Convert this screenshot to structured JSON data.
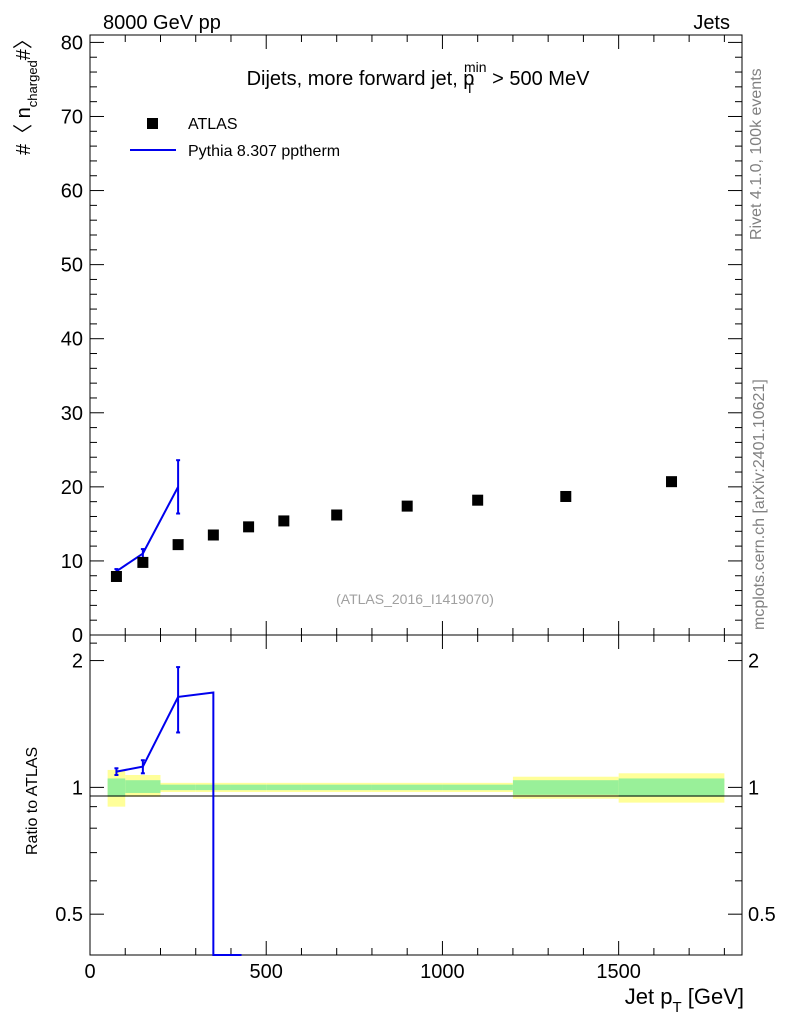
{
  "header": {
    "left": "8000 GeV pp",
    "right": "Jets"
  },
  "side_text": {
    "rivet": "Rivet 4.1.0,  100k events",
    "mcplots": "mcplots.cern.ch [arXiv:2401.10621]"
  },
  "colors": {
    "data": "#000000",
    "mc": "#0000ee",
    "band_inner": "#99f099",
    "band_outer": "#ffff99"
  },
  "chart_data": [
    {
      "type": "scatter",
      "title": "Dijets, more forward jet, p",
      "title_sup": "min",
      "title_sub": "T",
      "title_tail": " > 500 MeV",
      "ylabel_pre": "#〈 n",
      "ylabel_sub": "charged",
      "ylabel_post": "#〉",
      "xlim": [
        0,
        1850
      ],
      "ylim": [
        0,
        81
      ],
      "yticks": [
        0,
        10,
        20,
        30,
        40,
        50,
        60,
        70,
        80
      ],
      "ytick_labels": [
        "0",
        "10",
        "20",
        "30",
        "40",
        "50",
        "60",
        "70",
        "80"
      ],
      "watermark": "(ATLAS_2016_I1419070)",
      "legend": [
        {
          "label": "ATLAS",
          "marker": "square"
        },
        {
          "label": "Pythia 8.307 pptherm",
          "marker": "line"
        }
      ],
      "series": [
        {
          "name": "ATLAS",
          "x": [
            75,
            150,
            250,
            350,
            450,
            550,
            700,
            900,
            1100,
            1350,
            1650
          ],
          "y": [
            7.9,
            9.8,
            12.2,
            13.5,
            14.6,
            15.4,
            16.2,
            17.4,
            18.2,
            18.7,
            20.7
          ]
        },
        {
          "name": "Pythia 8.307 pptherm",
          "x": [
            75,
            150,
            250
          ],
          "y": [
            8.6,
            11.0,
            20.0
          ],
          "err": [
            0.3,
            0.6,
            3.6
          ]
        }
      ]
    },
    {
      "type": "line",
      "ylabel": "Ratio to ATLAS",
      "xlabel_pre": "Jet p",
      "xlabel_sub": "T",
      "xlabel_post": " [GeV]",
      "xlim": [
        0,
        1850
      ],
      "ylim": [
        0.4,
        2.3
      ],
      "yscale": "log",
      "yticks": [
        0.5,
        1,
        2
      ],
      "ytick_labels": [
        "0.5",
        "1",
        "2"
      ],
      "xticks": [
        0,
        500,
        1000,
        1500
      ],
      "xtick_labels": [
        "0",
        "500",
        "1000",
        "1500"
      ],
      "bins": [
        {
          "lo": 50,
          "hi": 100,
          "inner": [
            0.95,
            1.05
          ],
          "outer": [
            0.9,
            1.1
          ]
        },
        {
          "lo": 100,
          "hi": 200,
          "inner": [
            0.97,
            1.04
          ],
          "outer": [
            0.95,
            1.07
          ]
        },
        {
          "lo": 200,
          "hi": 300,
          "inner": [
            0.985,
            1.015
          ],
          "outer": [
            0.975,
            1.025
          ]
        },
        {
          "lo": 300,
          "hi": 400,
          "inner": [
            0.985,
            1.015
          ],
          "outer": [
            0.975,
            1.025
          ]
        },
        {
          "lo": 400,
          "hi": 500,
          "inner": [
            0.985,
            1.015
          ],
          "outer": [
            0.975,
            1.025
          ]
        },
        {
          "lo": 500,
          "hi": 600,
          "inner": [
            0.985,
            1.015
          ],
          "outer": [
            0.975,
            1.025
          ]
        },
        {
          "lo": 600,
          "hi": 800,
          "inner": [
            0.985,
            1.015
          ],
          "outer": [
            0.975,
            1.025
          ]
        },
        {
          "lo": 800,
          "hi": 1000,
          "inner": [
            0.985,
            1.015
          ],
          "outer": [
            0.975,
            1.025
          ]
        },
        {
          "lo": 1000,
          "hi": 1200,
          "inner": [
            0.985,
            1.015
          ],
          "outer": [
            0.975,
            1.025
          ]
        },
        {
          "lo": 1200,
          "hi": 1500,
          "inner": [
            0.96,
            1.04
          ],
          "outer": [
            0.94,
            1.06
          ]
        },
        {
          "lo": 1500,
          "hi": 1800,
          "inner": [
            0.95,
            1.05
          ],
          "outer": [
            0.92,
            1.08
          ]
        }
      ],
      "series": [
        {
          "name": "Pythia 8.307 pptherm",
          "x": [
            75,
            150,
            250,
            350,
            350,
            430
          ],
          "y": [
            1.09,
            1.12,
            1.64,
            1.68,
            0.4,
            0.4
          ],
          "err_points": [
            {
              "x": 75,
              "y": 1.09,
              "lo": 1.07,
              "hi": 1.11
            },
            {
              "x": 150,
              "y": 1.12,
              "lo": 1.08,
              "hi": 1.16
            },
            {
              "x": 250,
              "y": 1.64,
              "lo": 1.35,
              "hi": 1.93
            }
          ]
        }
      ]
    }
  ]
}
